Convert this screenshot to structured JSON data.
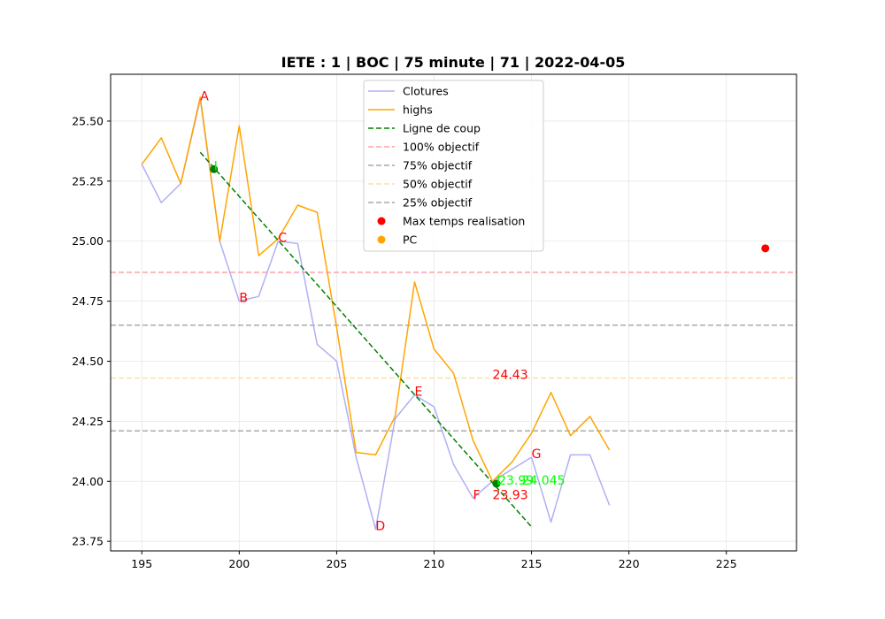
{
  "chart_data": {
    "type": "line",
    "title": "IETE : 1 | BOC | 75 minute | 71 | 2022-04-05",
    "xlabel": "",
    "ylabel": "",
    "xlim": [
      193.4,
      228.6
    ],
    "ylim": [
      23.71,
      25.695
    ],
    "x_ticks": [
      195,
      200,
      205,
      210,
      215,
      220,
      225
    ],
    "y_ticks": [
      23.75,
      24.0,
      24.25,
      24.5,
      24.75,
      25.0,
      25.25,
      25.5
    ],
    "y_tick_labels": [
      "23.75",
      "24.00",
      "24.25",
      "24.50",
      "24.75",
      "25.00",
      "25.25",
      "25.50"
    ],
    "grid": true,
    "legend_position": "top-center",
    "series": [
      {
        "name": "Clotures",
        "kind": "line",
        "color": "#b0b0f5",
        "x": [
          195,
          196,
          197,
          198,
          199,
          200,
          201,
          202,
          203,
          204,
          205,
          206,
          207,
          208,
          209,
          210,
          211,
          212,
          213,
          214,
          215,
          216,
          217,
          218,
          219
        ],
        "y": [
          25.32,
          25.16,
          25.24,
          25.59,
          25.0,
          24.75,
          24.77,
          25.0,
          24.99,
          24.57,
          24.5,
          24.1,
          23.8,
          24.26,
          24.36,
          24.31,
          24.07,
          23.93,
          24.0,
          24.05,
          24.1,
          23.83,
          24.11,
          24.11,
          23.9
        ]
      },
      {
        "name": "highs",
        "kind": "line",
        "color": "#ffa500",
        "x": [
          195,
          196,
          197,
          198,
          199,
          200,
          201,
          202,
          203,
          204,
          205,
          206,
          207,
          208,
          209,
          210,
          211,
          212,
          213,
          214,
          215,
          216,
          217,
          218,
          219
        ],
        "y": [
          25.32,
          25.43,
          25.24,
          25.6,
          25.0,
          25.48,
          24.94,
          25.01,
          25.15,
          25.12,
          24.64,
          24.12,
          24.11,
          24.27,
          24.83,
          24.55,
          24.45,
          24.17,
          24.0,
          24.08,
          24.2,
          24.37,
          24.19,
          24.27,
          24.13
        ]
      },
      {
        "name": "Ligne de coup",
        "kind": "dashed-line",
        "color": "#008000",
        "x": [
          198,
          215
        ],
        "y": [
          25.37,
          23.81
        ]
      },
      {
        "name": "100% objectif",
        "kind": "hline",
        "color": "#ffa0aa",
        "y": 24.87
      },
      {
        "name": "75% objectif",
        "kind": "hline",
        "color": "#a9a9a9",
        "y": 24.65
      },
      {
        "name": "50% objectif",
        "kind": "hline",
        "color": "#ffdead",
        "y": 24.43
      },
      {
        "name": "25% objectif",
        "kind": "hline",
        "color": "#a9a9a9",
        "y": 24.21
      },
      {
        "name": "Max temps realisation",
        "kind": "point",
        "color": "#ff0000",
        "x": 227,
        "y": 24.97
      },
      {
        "name": "PC",
        "kind": "point",
        "color": "#ffa500",
        "legend_only": true
      }
    ],
    "extra_points": [
      {
        "x": 198.7,
        "y": 25.3,
        "color": "#008000"
      },
      {
        "x": 213.2,
        "y": 23.99,
        "color": "#008000"
      }
    ],
    "annotations": [
      {
        "text": "A",
        "x": 198.0,
        "y": 25.59,
        "color": "#ff0000"
      },
      {
        "text": "B",
        "x": 200.0,
        "y": 24.75,
        "color": "#ff0000"
      },
      {
        "text": "C",
        "x": 202.0,
        "y": 25.0,
        "color": "#ff0000"
      },
      {
        "text": "D",
        "x": 207.0,
        "y": 23.8,
        "color": "#ff0000"
      },
      {
        "text": "E",
        "x": 209.0,
        "y": 24.36,
        "color": "#ff0000"
      },
      {
        "text": "F",
        "x": 212.0,
        "y": 23.93,
        "color": "#ff0000"
      },
      {
        "text": "G",
        "x": 215.0,
        "y": 24.1,
        "color": "#ff0000"
      },
      {
        "text": "I",
        "x": 198.7,
        "y": 25.3,
        "color": "#00ff00"
      },
      {
        "text": "I",
        "x": 213.2,
        "y": 23.99,
        "color": "#00ff00"
      },
      {
        "text": "24.43",
        "x": 213.0,
        "y": 24.43,
        "color": "#ff0000"
      },
      {
        "text": "23.93",
        "x": 213.0,
        "y": 23.93,
        "color": "#ff0000"
      },
      {
        "text": "23.99",
        "x": 213.3,
        "y": 23.99,
        "color": "#00ff00"
      },
      {
        "text": "24.045",
        "x": 214.5,
        "y": 23.99,
        "color": "#00ff00"
      }
    ]
  }
}
